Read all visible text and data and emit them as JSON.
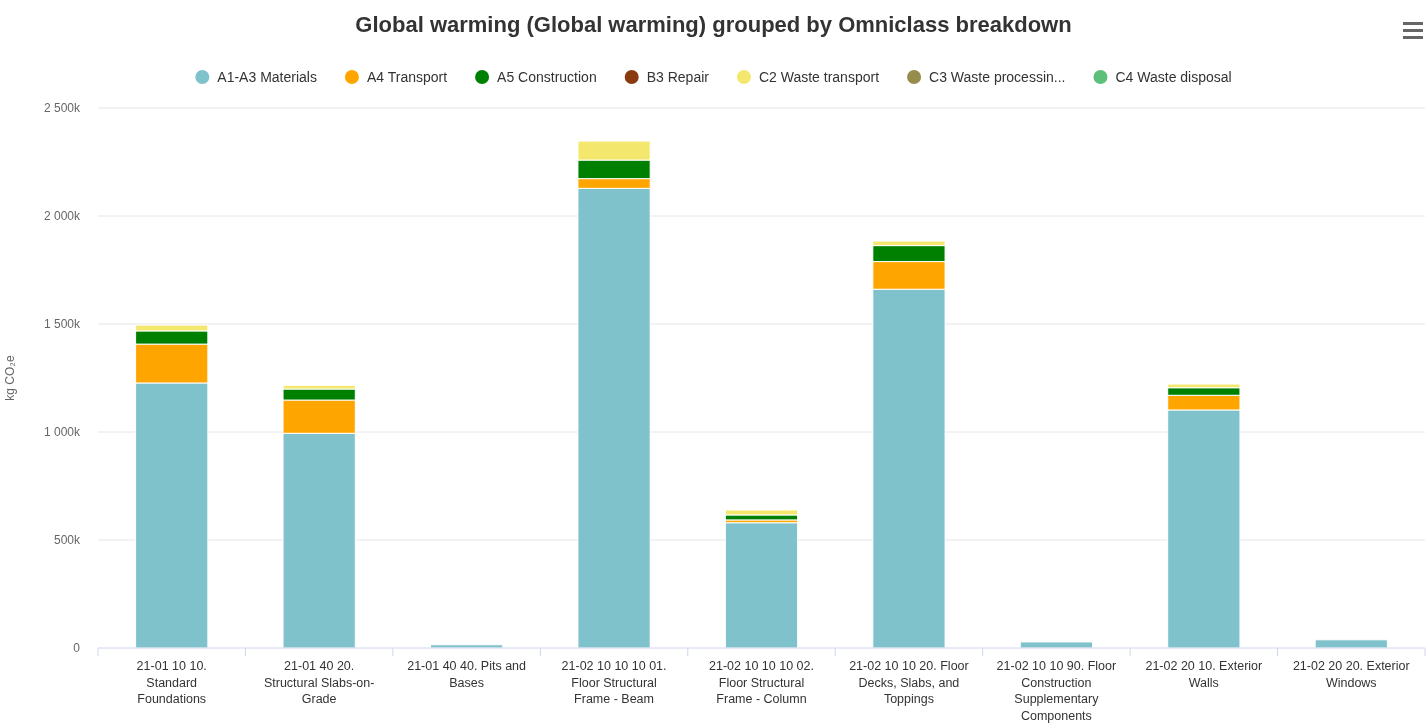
{
  "chart_data": {
    "type": "bar",
    "title": "Global warming (Global warming) grouped by Omniclass breakdown",
    "ylabel": "kg CO₂e",
    "categories": [
      "21-01 10 10. Standard Foundations",
      "21-01 40 20. Structural Slabs-on-Grade",
      "21-01 40 40. Pits and Bases",
      "21-02 10 10 10 01. Floor Structural Frame - Beam",
      "21-02 10 10 10 02. Floor Structural Frame - Column",
      "21-02 10 10 20. Floor Decks, Slabs, and Toppings",
      "21-02 10 10 90. Floor Construction Supplementary Components",
      "21-02 20 10. Exterior Walls",
      "21-02 20 20. Exterior Windows"
    ],
    "stacked": true,
    "series": [
      {
        "name": "A1-A3 Materials",
        "color": "#7fc2cb",
        "values": [
          1227,
          994,
          15,
          2128,
          580,
          1661,
          28,
          1102,
          38
        ]
      },
      {
        "name": "A4 Transport",
        "color": "#ffa500",
        "values": [
          180,
          154,
          0,
          45,
          13,
          128,
          0,
          68,
          0
        ]
      },
      {
        "name": "A5 Construction",
        "color": "#008000",
        "values": [
          61,
          51,
          0,
          86,
          23,
          74,
          0,
          35,
          0
        ]
      },
      {
        "name": "B3 Repair",
        "color": "#8b3a0f",
        "values": [
          0,
          0,
          0,
          0,
          0,
          0,
          0,
          0,
          0
        ]
      },
      {
        "name": "C2 Waste transport",
        "color": "#f4e76e",
        "values": [
          27,
          17,
          0,
          88,
          23,
          21,
          0,
          17,
          0
        ]
      },
      {
        "name": "C3 Waste processin...",
        "color": "#968c4b",
        "values": [
          0,
          0,
          0,
          0,
          0,
          0,
          0,
          0,
          0
        ]
      },
      {
        "name": "C4 Waste disposal",
        "color": "#5cbf7a",
        "values": [
          0,
          0,
          0,
          0,
          0,
          0,
          0,
          0,
          0
        ]
      }
    ],
    "ylim": [
      0,
      2500
    ],
    "yticks": [
      {
        "value": 0,
        "label": "0"
      },
      {
        "value": 500,
        "label": "500k"
      },
      {
        "value": 1000,
        "label": "1 000k"
      },
      {
        "value": 1500,
        "label": "1 500k"
      },
      {
        "value": 2000,
        "label": "2 000k"
      },
      {
        "value": 2500,
        "label": "2 500k"
      }
    ],
    "grid": "y",
    "legend": "top"
  }
}
